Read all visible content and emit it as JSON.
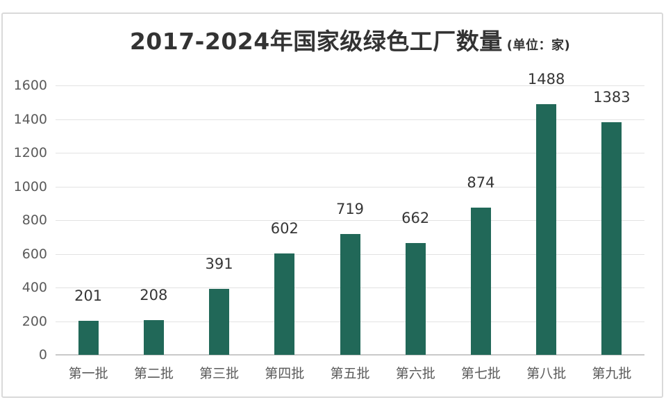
{
  "chart": {
    "title": "2017-2024年国家级绿色工厂数量",
    "unit_label": "(单位：家)"
  },
  "chart_data": {
    "type": "bar",
    "title": "2017-2024年国家级绿色工厂数量",
    "subtitle": "(单位：家)",
    "categories": [
      "第一批",
      "第二批",
      "第三批",
      "第四批",
      "第五批",
      "第六批",
      "第七批",
      "第八批",
      "第九批"
    ],
    "values": [
      201,
      208,
      391,
      602,
      719,
      662,
      874,
      1488,
      1383
    ],
    "xlabel": "",
    "ylabel": "",
    "ylim": [
      0,
      1600
    ],
    "yticks": [
      0,
      200,
      400,
      600,
      800,
      1000,
      1200,
      1400,
      1600
    ],
    "grid": true,
    "legend": false,
    "data_labels": true,
    "colors": {
      "bar": "#216858",
      "title": "#333333",
      "tick_label": "#5a5a5a",
      "data_label": "#363636",
      "gridline": "#e2e2e2",
      "axis_line": "#c9c9c9",
      "border": "#d9d9d9",
      "background": "#ffffff"
    }
  }
}
